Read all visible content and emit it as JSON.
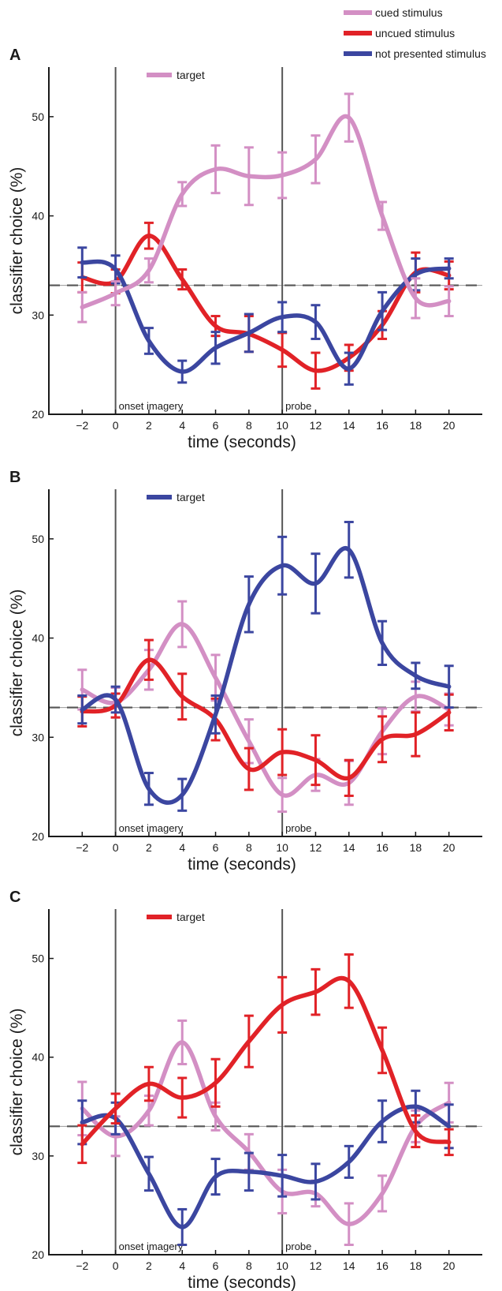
{
  "colors": {
    "cued": "#d38fc4",
    "uncued": "#e12227",
    "not_presented": "#3b46a0",
    "axis": "#1a1a1a",
    "event_line": "#555555",
    "chance_line": "#555555"
  },
  "legend": [
    {
      "key": "cued",
      "label": "cued stimulus"
    },
    {
      "key": "uncued",
      "label": "uncued stimulus"
    },
    {
      "key": "not_presented",
      "label": "not presented stimulus"
    }
  ],
  "events": [
    {
      "x": 0,
      "label": "onset imagery"
    },
    {
      "x": 10,
      "label": "probe"
    }
  ],
  "chart_data": [
    {
      "type": "line",
      "panel": "A",
      "target_label": "target",
      "target_series": "cued",
      "xlabel": "time (seconds)",
      "ylabel": "classifier choice (%)",
      "xlim": [
        -4,
        22
      ],
      "ylim": [
        20,
        55
      ],
      "xticks": [
        -2,
        0,
        2,
        4,
        6,
        8,
        10,
        12,
        14,
        16,
        18,
        20
      ],
      "yticks": [
        20,
        30,
        40,
        50
      ],
      "chance_level": 33,
      "x": [
        -2,
        0,
        2,
        4,
        6,
        8,
        10,
        12,
        14,
        16,
        18,
        20
      ],
      "series": [
        {
          "key": "cued",
          "values": [
            30.8,
            32.2,
            34.5,
            42.2,
            44.7,
            44.0,
            44.1,
            45.7,
            49.9,
            40.0,
            31.7,
            31.4
          ],
          "err": [
            1.5,
            1.2,
            1.2,
            1.2,
            2.4,
            2.9,
            2.3,
            2.4,
            2.4,
            1.4,
            2.0,
            1.5
          ]
        },
        {
          "key": "uncued",
          "values": [
            33.8,
            33.4,
            38.0,
            33.6,
            28.9,
            28.1,
            26.5,
            24.4,
            25.7,
            29.0,
            34.3,
            34.0
          ],
          "err": [
            1.5,
            1.2,
            1.3,
            1.0,
            1.0,
            1.8,
            1.7,
            1.8,
            1.3,
            1.4,
            2.0,
            1.4
          ]
        },
        {
          "key": "not_presented",
          "values": [
            35.3,
            34.6,
            27.4,
            24.3,
            26.7,
            28.2,
            29.8,
            29.3,
            24.6,
            30.4,
            34.1,
            34.7
          ],
          "err": [
            1.5,
            1.4,
            1.3,
            1.1,
            1.6,
            1.9,
            1.5,
            1.7,
            1.6,
            1.9,
            1.6,
            1.0
          ]
        }
      ]
    },
    {
      "type": "line",
      "panel": "B",
      "target_label": "target",
      "target_series": "not_presented",
      "xlabel": "time (seconds)",
      "ylabel": "classifier choice (%)",
      "xlim": [
        -4,
        22
      ],
      "ylim": [
        20,
        55
      ],
      "xticks": [
        -2,
        0,
        2,
        4,
        6,
        8,
        10,
        12,
        14,
        16,
        18,
        20
      ],
      "yticks": [
        20,
        30,
        40,
        50
      ],
      "chance_level": 33,
      "x": [
        -2,
        0,
        2,
        4,
        6,
        8,
        10,
        12,
        14,
        16,
        18,
        20
      ],
      "series": [
        {
          "key": "cued",
          "values": [
            34.8,
            33.5,
            36.8,
            41.4,
            36.0,
            29.6,
            24.2,
            26.2,
            25.4,
            30.6,
            34.1,
            32.8
          ],
          "err": [
            2.0,
            1.5,
            2.0,
            2.3,
            2.3,
            2.2,
            1.7,
            1.6,
            2.2,
            2.3,
            1.5,
            1.6
          ]
        },
        {
          "key": "uncued",
          "values": [
            32.6,
            33.2,
            37.8,
            34.1,
            31.8,
            26.8,
            28.5,
            27.7,
            25.9,
            29.8,
            30.3,
            32.5
          ],
          "err": [
            1.5,
            1.2,
            2.0,
            2.3,
            2.1,
            2.1,
            2.3,
            2.5,
            1.8,
            2.3,
            2.2,
            1.8
          ]
        },
        {
          "key": "not_presented",
          "values": [
            32.8,
            33.8,
            24.8,
            24.2,
            32.3,
            43.4,
            47.3,
            45.5,
            48.9,
            39.5,
            36.2,
            35.1
          ],
          "err": [
            1.4,
            1.3,
            1.6,
            1.6,
            1.9,
            2.8,
            2.9,
            3.0,
            2.8,
            2.2,
            1.3,
            2.1
          ]
        }
      ]
    },
    {
      "type": "line",
      "panel": "C",
      "target_label": "target",
      "target_series": "uncued",
      "xlabel": "time (seconds)",
      "ylabel": "classifier choice (%)",
      "xlim": [
        -4,
        22
      ],
      "ylim": [
        20,
        55
      ],
      "xticks": [
        -2,
        0,
        2,
        4,
        6,
        8,
        10,
        12,
        14,
        16,
        18,
        20
      ],
      "yticks": [
        20,
        30,
        40,
        50
      ],
      "chance_level": 33,
      "x": [
        -2,
        0,
        2,
        4,
        6,
        8,
        10,
        12,
        14,
        16,
        18,
        20
      ],
      "series": [
        {
          "key": "cued",
          "values": [
            34.8,
            32.0,
            34.6,
            41.5,
            34.0,
            30.4,
            26.4,
            26.2,
            23.1,
            26.2,
            33.0,
            35.4
          ],
          "err": [
            2.7,
            2.0,
            1.5,
            2.2,
            1.4,
            1.8,
            2.2,
            1.3,
            2.1,
            1.8,
            1.6,
            2.0
          ]
        },
        {
          "key": "uncued",
          "values": [
            31.2,
            34.8,
            37.3,
            35.9,
            37.4,
            41.6,
            45.3,
            46.6,
            47.7,
            40.7,
            32.5,
            31.4
          ],
          "err": [
            1.9,
            1.5,
            1.7,
            2.0,
            2.4,
            2.6,
            2.8,
            2.3,
            2.7,
            2.3,
            1.6,
            1.3
          ]
        },
        {
          "key": "not_presented",
          "values": [
            33.4,
            33.8,
            28.2,
            22.8,
            27.9,
            28.4,
            28.0,
            27.4,
            29.4,
            33.5,
            35.0,
            33.0
          ],
          "err": [
            2.2,
            1.6,
            1.7,
            1.8,
            1.8,
            1.9,
            2.1,
            1.8,
            1.6,
            2.1,
            1.6,
            2.2
          ]
        }
      ]
    }
  ]
}
